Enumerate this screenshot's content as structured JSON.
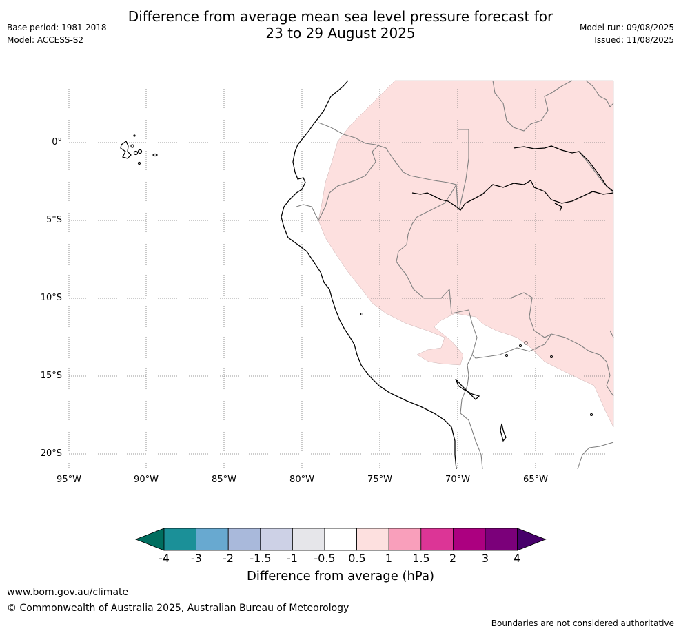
{
  "title": {
    "line1": "Difference from average mean sea level pressure forecast for",
    "line2": "23 to 29 August 2025"
  },
  "meta_left": {
    "base_period": "Base period: 1981-2018",
    "model": "Model: ACCESS-S2"
  },
  "meta_right": {
    "model_run": "Model run: 09/08/2025",
    "issued": "Issued: 11/08/2025"
  },
  "map": {
    "lat_labels": [
      "0°",
      "5°S",
      "10°S",
      "15°S",
      "20°S"
    ],
    "lon_labels": [
      "95°W",
      "90°W",
      "85°W",
      "80°W",
      "75°W",
      "70°W",
      "65°W"
    ],
    "anomaly_fill_color": "#fde0df",
    "coastline_color": "#000000",
    "border_color": "#808080",
    "grid": true
  },
  "colorbar": {
    "labels": [
      "-4",
      "-3",
      "-2",
      "-1.5",
      "-1",
      "-0.5",
      "0.5",
      "1",
      "1.5",
      "2",
      "3",
      "4"
    ],
    "colors": [
      "#006e5f",
      "#1b9098",
      "#68a9d0",
      "#a9b9db",
      "#cdd1e6",
      "#e6e6ea",
      "#ffffff",
      "#fde0df",
      "#f99fbb",
      "#dc3596",
      "#ac0080",
      "#7b007a",
      "#47006a"
    ],
    "title": "Difference from average (hPa)"
  },
  "footer": {
    "url": "www.bom.gov.au/climate",
    "copyright": "© Commonwealth of Australia 2025, Australian Bureau of Meteorology",
    "disclaimer": "Boundaries are not considered authoritative"
  }
}
